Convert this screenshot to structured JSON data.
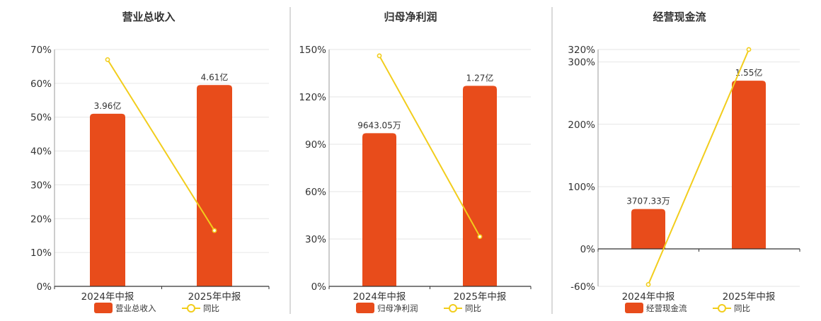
{
  "colors": {
    "bar": "#e84c1b",
    "line": "#f2cd1c",
    "grid": "#e6e6e6",
    "axis": "#333333",
    "text": "#333333",
    "divider": "#b5b5b5"
  },
  "chart_data": [
    {
      "type": "bar",
      "title": "营业总收入",
      "categories": [
        "2024年中报",
        "2025年中报"
      ],
      "series": [
        {
          "name": "营业总收入",
          "type": "bar",
          "labels": [
            "3.96亿",
            "4.61亿"
          ],
          "axis_values": [
            51,
            59.5
          ]
        },
        {
          "name": "同比",
          "type": "line",
          "values": [
            67,
            16.5
          ]
        }
      ],
      "y_ticks": [
        "0%",
        "10%",
        "20%",
        "30%",
        "40%",
        "50%",
        "60%",
        "70%"
      ],
      "ylim": [
        0,
        70
      ],
      "legend": [
        "营业总收入",
        "同比"
      ],
      "legend_position": "bottom",
      "grid": true
    },
    {
      "type": "bar",
      "title": "归母净利润",
      "categories": [
        "2024年中报",
        "2025年中报"
      ],
      "series": [
        {
          "name": "归母净利润",
          "type": "bar",
          "labels": [
            "9643.05万",
            "1.27亿"
          ],
          "axis_values": [
            97,
            127
          ]
        },
        {
          "name": "同比",
          "type": "line",
          "values": [
            146,
            31.5
          ]
        }
      ],
      "y_ticks": [
        "0%",
        "30%",
        "60%",
        "90%",
        "120%",
        "150%"
      ],
      "ylim": [
        0,
        150
      ],
      "legend": [
        "归母净利润",
        "同比"
      ],
      "legend_position": "bottom",
      "grid": true
    },
    {
      "type": "bar",
      "title": "经营现金流",
      "categories": [
        "2024年中报",
        "2025年中报"
      ],
      "series": [
        {
          "name": "经营现金流",
          "type": "bar",
          "labels": [
            "3707.33万",
            "1.55亿"
          ],
          "axis_values": [
            64,
            270
          ]
        },
        {
          "name": "同比",
          "type": "line",
          "values": [
            -57,
            320
          ]
        }
      ],
      "y_ticks": [
        "-60%",
        "0%",
        "100%",
        "200%",
        "300%",
        "320%"
      ],
      "ylim": [
        -60,
        320
      ],
      "legend": [
        "经营现金流",
        "同比"
      ],
      "legend_position": "bottom",
      "grid": true
    }
  ]
}
